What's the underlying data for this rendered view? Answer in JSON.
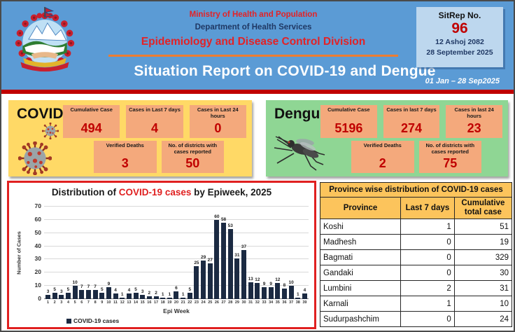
{
  "header": {
    "ministry": "Ministry of Health and Population",
    "department": "Department of Health Services",
    "division": "Epidemiology and Disease Control Division",
    "report_title": "Situation Report on COVID-19 and Dengue",
    "period": "01 Jan – 28 Sep2025",
    "sitrep": {
      "label": "SitRep No.",
      "number": "96",
      "date_nepali": "12 Ashoj 2082",
      "date_english": "28 September 2025"
    }
  },
  "covid": {
    "title": "COVID-19",
    "cards_row1": [
      {
        "label": "Cumulative Case",
        "value": "494"
      },
      {
        "label": "Cases in Last 7 days",
        "value": "4"
      },
      {
        "label": "Cases in Last 24 hours",
        "value": "0"
      }
    ],
    "cards_row2": [
      {
        "label": "Verified Deaths",
        "value": "3"
      },
      {
        "label": "No. of districts with cases reported",
        "value": "50"
      }
    ]
  },
  "dengue": {
    "title": "Dengue",
    "cards_row1": [
      {
        "label": "Cumulative Case",
        "value": "5196"
      },
      {
        "label": "Cases in last 7 days",
        "value": "274"
      },
      {
        "label": "Cases in last 24 hours",
        "value": "23"
      }
    ],
    "cards_row2": [
      {
        "label": "Verified Deaths",
        "value": "2"
      },
      {
        "label": "No. of districts with cases reported",
        "value": "75"
      }
    ]
  },
  "chart_data": {
    "type": "bar",
    "title": "Distribution of COVID-19 cases by Epiweek, 2025",
    "title_prefix": "Distribution of ",
    "title_highlight": "COVID-19 cases",
    "title_suffix": " by Epiweek, 2025",
    "xlabel": "Epi Week",
    "ylabel": "Number of Cases",
    "legend": [
      "COVID-19 cases"
    ],
    "legend_position": "bottom-left",
    "grid": true,
    "ylim": [
      0,
      70
    ],
    "yticks": [
      0,
      10,
      20,
      30,
      40,
      50,
      60,
      70
    ],
    "categories": [
      1,
      2,
      3,
      4,
      5,
      6,
      7,
      8,
      9,
      10,
      11,
      12,
      13,
      14,
      15,
      16,
      17,
      18,
      19,
      20,
      21,
      22,
      23,
      24,
      25,
      26,
      27,
      28,
      29,
      30,
      31,
      32,
      33,
      34,
      35,
      36,
      37,
      38,
      39
    ],
    "values": [
      3,
      5,
      3,
      5,
      10,
      7,
      7,
      7,
      5,
      9,
      4,
      1,
      4,
      5,
      3,
      2,
      2,
      1,
      1,
      6,
      1,
      5,
      25,
      29,
      27,
      60,
      58,
      53,
      31,
      37,
      13,
      12,
      9,
      9,
      12,
      8,
      10,
      1,
      4
    ],
    "bar_color": "#1b2a42"
  },
  "table": {
    "title": "Province wise distribution of COVID-19 cases",
    "columns": [
      "Province",
      "Last 7 days",
      "Cumulative total case"
    ],
    "rows": [
      {
        "province": "Koshi",
        "last7": "1",
        "cumulative": "51"
      },
      {
        "province": "Madhesh",
        "last7": "0",
        "cumulative": "19"
      },
      {
        "province": "Bagmati",
        "last7": "0",
        "cumulative": "329"
      },
      {
        "province": "Gandaki",
        "last7": "0",
        "cumulative": "30"
      },
      {
        "province": "Lumbini",
        "last7": "2",
        "cumulative": "31"
      },
      {
        "province": "Karnali",
        "last7": "1",
        "cumulative": "10"
      },
      {
        "province": "Sudurpashchim",
        "last7": "0",
        "cumulative": "24"
      }
    ]
  },
  "colors": {
    "header_blue": "#5b9bd5",
    "red_text": "#e32226",
    "navy_text": "#1f3864",
    "sitrep_bg": "#bdd7ee",
    "value_red": "#c00000",
    "divider_red": "#c00000",
    "covid_box_bg": "#ffd966",
    "dengue_box_bg": "#8fd694",
    "stat_card_bg": "#f4a97c",
    "chart_border_red": "#e02020",
    "bar_navy": "#1b2a42",
    "table_header_orange": "#fcc45c",
    "underline_orange": "#ed7d31"
  }
}
